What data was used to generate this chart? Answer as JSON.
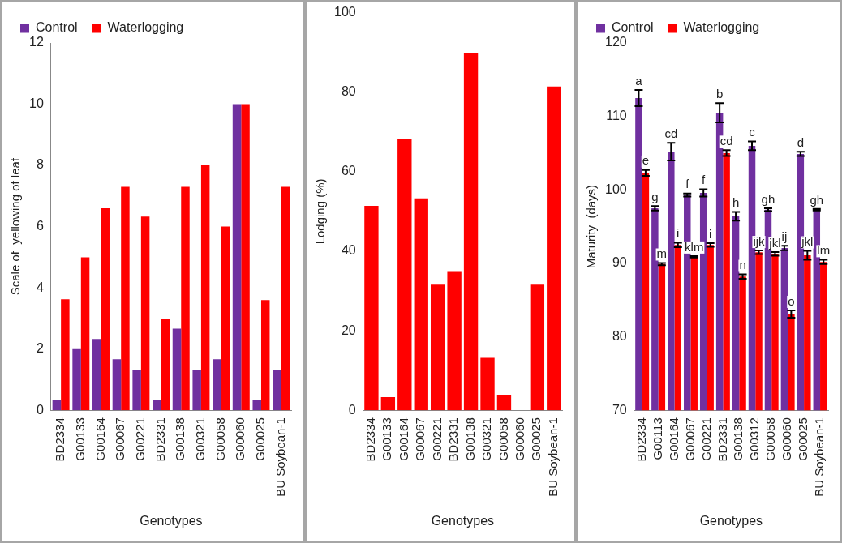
{
  "chart_data": [
    {
      "type": "bar",
      "xlabel": "Genotypes",
      "ylabel": "Scale of  yellowing of leaf",
      "categories": [
        "BD2334",
        "G00133",
        "G00164",
        "G00067",
        "G00221",
        "BD2331",
        "G00138",
        "G00321",
        "G00058",
        "G00060",
        "G00025",
        "BU Soybean-1"
      ],
      "series": [
        {
          "name": "Control",
          "color": "#7030a0",
          "values": [
            0.33,
            2,
            2.33,
            1.67,
            1.33,
            0.33,
            2.67,
            1.33,
            1.67,
            10,
            0.33,
            1.33
          ]
        },
        {
          "name": "Waterlogging",
          "color": "#ff0000",
          "values": [
            3.63,
            5,
            6.6,
            7.3,
            6.33,
            3,
            7.3,
            8,
            6,
            10,
            3.6,
            7.3
          ]
        }
      ],
      "ylim": [
        0,
        12
      ],
      "yticks": [
        0,
        2,
        4,
        6,
        8,
        10,
        12
      ],
      "grid": false,
      "legend": "top"
    },
    {
      "type": "bar",
      "xlabel": "Genotypes",
      "ylabel": "Lodging (%)",
      "categories": [
        "BD2334",
        "G00133",
        "G00164",
        "G00067",
        "G00221",
        "BD2331",
        "G00138",
        "G00321",
        "G00058",
        "G00060",
        "G00025",
        "BU Soybean-1"
      ],
      "series": [
        {
          "color": "#ff0000",
          "values": [
            51.4,
            3.3,
            68.1,
            53.3,
            31.6,
            34.8,
            89.8,
            13.2,
            3.8,
            0,
            31.6,
            81.4
          ]
        }
      ],
      "ylim": [
        0,
        100
      ],
      "yticks": [
        0,
        20,
        40,
        60,
        80,
        100
      ],
      "grid": false,
      "legend": false
    },
    {
      "type": "bar",
      "xlabel": "Genotypes",
      "ylabel": "Maturity  (days)",
      "categories": [
        "BD2334",
        "G00113",
        "G00164",
        "G00067",
        "G00221",
        "BD2331",
        "G00138",
        "G00312",
        "G00058",
        "G00060",
        "G00025",
        "BU Soybean-1"
      ],
      "series": [
        {
          "name": "Control",
          "color": "#7030a0",
          "values": [
            112.5,
            97.5,
            105.2,
            99.3,
            99.6,
            110.5,
            96.4,
            106,
            97.3,
            92.1,
            104.9,
            97.3
          ],
          "errors": [
            1.1,
            0.3,
            1.2,
            0.2,
            0.5,
            1.3,
            0.6,
            0.6,
            0.2,
            0.3,
            0.3,
            0.1
          ],
          "value_labels": [
            "a",
            "g",
            "cd",
            "f",
            "f",
            "b",
            "h",
            "c",
            "gh",
            "ij",
            "d",
            "gh"
          ]
        },
        {
          "name": "Waterlogging",
          "color": "#ff0000",
          "values": [
            102.3,
            89.9,
            92.5,
            90.9,
            92.5,
            105,
            88.2,
            91.5,
            91.3,
            83.1,
            91.1,
            90.2
          ],
          "errors": [
            0.4,
            0.15,
            0.3,
            0.1,
            0.25,
            0.4,
            0.3,
            0.25,
            0.25,
            0.5,
            0.6,
            0.3
          ],
          "value_labels": [
            "e",
            "m",
            "i",
            "klm",
            "i",
            "cd",
            "n",
            "ijk",
            "jkl",
            "o",
            "jkl",
            "lm"
          ]
        }
      ],
      "ylim": [
        70,
        120
      ],
      "yticks": [
        70,
        80,
        90,
        100,
        110,
        120
      ],
      "grid": false,
      "legend": "top"
    }
  ]
}
